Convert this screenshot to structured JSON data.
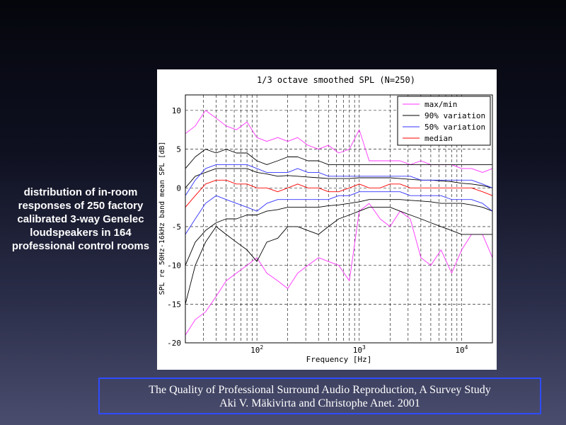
{
  "side_caption": "distribution of in-room responses of 250 factory calibrated 3-way Genelec loudspeakers in 164 professional control rooms",
  "citation": {
    "line1": "The Quality of Professional Surround Audio Reproduction, A Survey Study",
    "line2": "Aki V. Mäkivirta and Christophe Anet. 2001"
  },
  "colors": {
    "max_min": "#ff33ff",
    "variation_90": "#000000",
    "variation_50": "#3333ff",
    "median": "#ff0000",
    "citation_border": "#2f4cff"
  },
  "chart_data": {
    "type": "line",
    "title": "1/3 octave smoothed SPL (N=250)",
    "xlabel": "Frequency [Hz]",
    "ylabel": "SPL re 50Hz-16kHz band mean SPL [dB]",
    "xscale": "log",
    "xlim": [
      20,
      20000
    ],
    "ylim": [
      -20,
      12
    ],
    "y_ticks": [
      10,
      5,
      0,
      -5,
      -10,
      -15,
      -20
    ],
    "y_tick_labels": [
      "10",
      "5",
      "0",
      "-5",
      "-10",
      "-15",
      "-20"
    ],
    "x_tick_labels": [
      {
        "base": "10",
        "exp": "2",
        "value": 100
      },
      {
        "base": "10",
        "exp": "3",
        "value": 1000
      },
      {
        "base": "10",
        "exp": "4",
        "value": 10000
      }
    ],
    "grid": true,
    "legend_position": "top-right",
    "x": [
      20,
      25,
      31.5,
      40,
      50,
      63,
      80,
      100,
      125,
      160,
      200,
      250,
      315,
      400,
      500,
      630,
      800,
      1000,
      1250,
      1600,
      2000,
      2500,
      3150,
      4000,
      5000,
      6300,
      8000,
      10000,
      12500,
      16000,
      20000
    ],
    "series": [
      {
        "name": "max/min",
        "legend": "max/min",
        "color_key": "max_min",
        "values": [
          7,
          8,
          10,
          9,
          8,
          7.5,
          8.5,
          6.5,
          6,
          6.5,
          6,
          6.5,
          5.5,
          5,
          5.5,
          4.5,
          5,
          7.5,
          3.5,
          3.5,
          3.5,
          3.5,
          3,
          3.5,
          3,
          3,
          3,
          2.5,
          2.5,
          2,
          2.5
        ]
      },
      {
        "name": "max/min lower",
        "legend": "",
        "color_key": "max_min",
        "values": [
          -19,
          -17,
          -16,
          -14,
          -12,
          -11,
          -10,
          -9,
          -11,
          -12,
          -13,
          -11,
          -10,
          -9,
          -9.5,
          -10,
          -12,
          -3,
          -2,
          -4,
          -5,
          -3,
          -4,
          -9,
          -10,
          -8,
          -11,
          -8,
          -6,
          -6,
          -9
        ]
      },
      {
        "name": "90% upper",
        "legend": "90% variation",
        "color_key": "variation_90",
        "values": [
          2.5,
          4,
          5,
          4.5,
          5,
          4.5,
          4.5,
          3.5,
          3,
          3.5,
          4,
          4,
          3.5,
          3.5,
          3,
          3,
          3,
          3,
          3,
          3,
          3,
          3,
          3,
          3,
          3,
          3,
          3,
          3,
          3,
          3,
          3
        ]
      },
      {
        "name": "90% lower",
        "legend": "",
        "color_key": "variation_90",
        "values": [
          -15,
          -10,
          -7,
          -5,
          -6,
          -7,
          -8,
          -9.5,
          -7,
          -6.5,
          -5,
          -5,
          -5.5,
          -6,
          -5,
          -4,
          -3.5,
          -3,
          -2.5,
          -2.5,
          -2.5,
          -3,
          -3.5,
          -4,
          -4.5,
          -5,
          -5.5,
          -6,
          -6,
          -6,
          -6
        ]
      },
      {
        "name": "90% band inner upper",
        "legend": "",
        "color_key": "variation_90",
        "values": [
          0,
          1.5,
          2,
          2.5,
          2.5,
          2.5,
          2.5,
          2,
          1.8,
          1.5,
          1.6,
          1.5,
          1.4,
          1.3,
          1.2,
          1.2,
          1.2,
          1.3,
          1.3,
          1.3,
          1.3,
          1.2,
          1.1,
          1,
          1,
          0.9,
          0.8,
          0.6,
          0.5,
          0.3,
          0
        ]
      },
      {
        "name": "90% band inner lower",
        "legend": "",
        "color_key": "variation_90",
        "values": [
          -10,
          -7,
          -5.5,
          -4.5,
          -4,
          -4,
          -3.5,
          -3.5,
          -3,
          -2.8,
          -2.5,
          -2.5,
          -2.5,
          -2.5,
          -2.3,
          -2.2,
          -2,
          -1.8,
          -1.5,
          -1.5,
          -1.5,
          -1.5,
          -1.6,
          -1.7,
          -1.8,
          -2,
          -2,
          -2,
          -2.2,
          -2.5,
          -3
        ]
      },
      {
        "name": "50% upper",
        "legend": "50% variation",
        "color_key": "variation_50",
        "values": [
          -1,
          1,
          2.5,
          3,
          3,
          3,
          3,
          2.5,
          2,
          2,
          2,
          2.5,
          2,
          2,
          1.5,
          1.5,
          1.5,
          1.5,
          1.5,
          1.5,
          1.5,
          1.5,
          1.5,
          1,
          1,
          1,
          1,
          1,
          1,
          0.5,
          0
        ]
      },
      {
        "name": "50% lower",
        "legend": "",
        "color_key": "variation_50",
        "values": [
          -6,
          -4,
          -2,
          -1,
          -1.5,
          -2,
          -2.5,
          -3,
          -2,
          -1.5,
          -1.5,
          -1.5,
          -1.5,
          -1.5,
          -1.5,
          -1,
          -1,
          -0.5,
          -0.5,
          -0.5,
          -0.5,
          -0.5,
          -1,
          -1,
          -1,
          -1,
          -1.5,
          -1.5,
          -1.5,
          -2,
          -3
        ]
      },
      {
        "name": "median",
        "legend": "median",
        "color_key": "median",
        "values": [
          -2.5,
          -1,
          0.5,
          1,
          1,
          0.5,
          0.5,
          0,
          0,
          -0.5,
          0,
          0.5,
          0,
          0,
          -0.5,
          -0.5,
          0,
          0.5,
          0,
          0,
          0.5,
          0.5,
          0,
          0,
          0,
          0,
          0,
          0,
          0,
          -0.5,
          -1
        ]
      }
    ]
  }
}
